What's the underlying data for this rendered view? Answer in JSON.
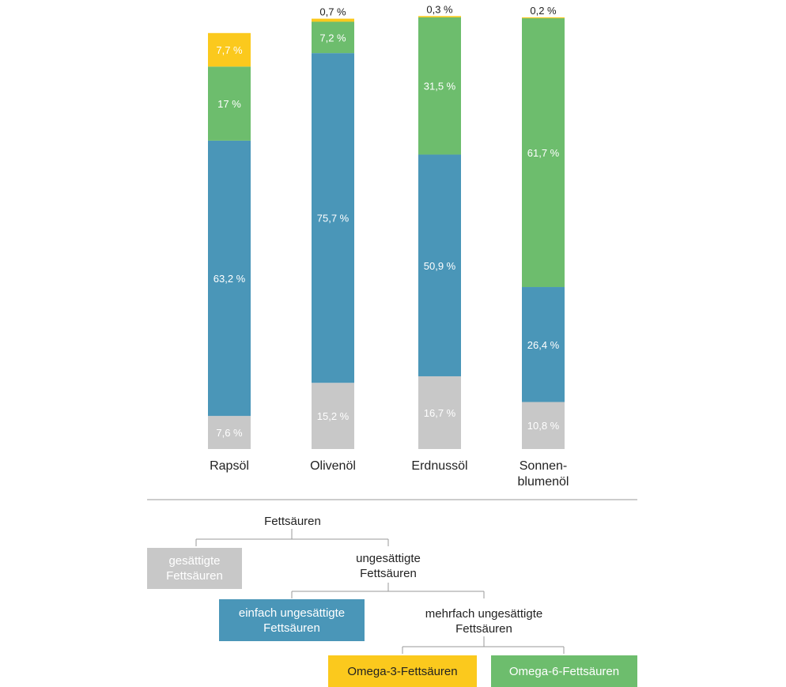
{
  "chart_data": {
    "type": "bar",
    "stacked": true,
    "categories": [
      "Rapsöl",
      "Olivenöl",
      "Erdnussöl",
      "Sonnen-\nblumenöl"
    ],
    "series": [
      {
        "name": "gesättigte Fettsäuren",
        "color": "#c8c8c8",
        "values": [
          7.6,
          15.2,
          16.7,
          10.8
        ],
        "labels": [
          "7,6 %",
          "15,2 %",
          "16,7 %",
          "10,8 %"
        ]
      },
      {
        "name": "einfach ungesättigte Fettsäuren",
        "color": "#4a96b8",
        "values": [
          63.2,
          75.7,
          50.9,
          26.4
        ],
        "labels": [
          "63,2 %",
          "75,7 %",
          "50,9 %",
          "26,4 %"
        ]
      },
      {
        "name": "Omega-6-Fettsäuren",
        "color": "#6dbd6d",
        "values": [
          17,
          7.2,
          31.5,
          61.7
        ],
        "labels": [
          "17 %",
          "7,2 %",
          "31,5 %",
          "61,7 %"
        ]
      },
      {
        "name": "Omega-3-Fettsäuren",
        "color": "#fbc91d",
        "values": [
          7.7,
          0.7,
          0.3,
          0.2
        ],
        "labels": [
          "7,7 %",
          "0,7 %",
          "0,3 %",
          "0,2 %"
        ]
      }
    ],
    "ylim": [
      0,
      100
    ],
    "grid": false
  },
  "legend": {
    "root": "Fettsäuren",
    "saturated": "gesättigte Fettsäuren",
    "unsaturated": "ungesättigte Fettsäuren",
    "mono": "einfach ungesättigte Fettsäuren",
    "poly": "mehrfach ungesättigte Fettsäuren",
    "omega3": "Omega-3-Fettsäuren",
    "omega6": "Omega-6-Fettsäuren",
    "colors": {
      "saturated": "#c8c8c8",
      "mono": "#4a96b8",
      "omega3": "#fbc91d",
      "omega6": "#6dbd6d",
      "lines": "#9a9a9a"
    }
  }
}
